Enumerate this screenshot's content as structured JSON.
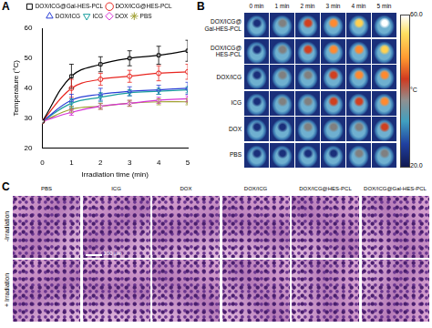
{
  "panel_labels": [
    "A",
    "B",
    "C"
  ],
  "chart_data": {
    "type": "line",
    "x_label": "Irradiation time (min)",
    "y_label": "Temperature (°C)",
    "x": [
      0,
      1,
      2,
      3,
      4,
      5
    ],
    "xlim": [
      0,
      5
    ],
    "xticks": [
      0,
      1,
      2,
      3,
      4,
      5
    ],
    "ylim": [
      20,
      60
    ],
    "yticks": [
      20,
      30,
      40,
      50,
      60
    ],
    "grid": false,
    "legend": "top",
    "series": [
      {
        "name": "DOX/ICG@Gal-HES-PCL",
        "color": "#000000",
        "marker": "square",
        "values": [
          29,
          44,
          48,
          50,
          51,
          52.5
        ],
        "errors": [
          0,
          4,
          2.5,
          2.5,
          3,
          3.5
        ]
      },
      {
        "name": "DOX/ICG@HES-PCL",
        "color": "#e8251f",
        "marker": "circle",
        "values": [
          29,
          40,
          43,
          44,
          45,
          45.5
        ],
        "errors": [
          0,
          3,
          2,
          2,
          2.5,
          2.5
        ]
      },
      {
        "name": "DOX/ICG",
        "color": "#2a3fd6",
        "marker": "triangle",
        "values": [
          29,
          36,
          38,
          39,
          39.5,
          40
        ],
        "errors": [
          0,
          2,
          2,
          1.5,
          1.5,
          2
        ]
      },
      {
        "name": "ICG",
        "color": "#1a9e9e",
        "marker": "triangle_down",
        "values": [
          29,
          35,
          37,
          38.5,
          39,
          39.5
        ],
        "errors": [
          0,
          1.5,
          1.5,
          1,
          1,
          1
        ]
      },
      {
        "name": "DOX",
        "color": "#d633d6",
        "marker": "diamond",
        "values": [
          29,
          32,
          34,
          35,
          36,
          36.5
        ],
        "errors": [
          0,
          1,
          1,
          1,
          1,
          1
        ]
      },
      {
        "name": "PBS",
        "color": "#a0a032",
        "marker": "star",
        "values": [
          29,
          33,
          34,
          35,
          35.5,
          35.5
        ],
        "errors": [
          0,
          1,
          1,
          1,
          1,
          1
        ]
      }
    ]
  },
  "thermal_images": {
    "columns": [
      "0 min",
      "1 min",
      "2 min",
      "3 min",
      "4 min",
      "5 min"
    ],
    "rows": [
      "DOX/ICG@\nGal-HES-PCL",
      "DOX/ICG@\nHES-PCL",
      "DOX/ICG",
      "ICG",
      "DOX",
      "PBS"
    ],
    "colorbar": {
      "range": [
        20,
        60
      ],
      "ticks": [
        {
          "value": 60,
          "label": "60.0"
        },
        {
          "value": 20,
          "label": "20.0"
        }
      ],
      "unit": "°C"
    }
  },
  "histology": {
    "columns": [
      "PBS",
      "ICG",
      "DOX",
      "DOX/ICG",
      "DOX/ICG@HES-PCL",
      "DOX/ICG@Gal-HES-PCL"
    ],
    "rows": [
      "-Irradiation",
      "+ Irradiation"
    ],
    "scale_bar": "100 μm"
  }
}
